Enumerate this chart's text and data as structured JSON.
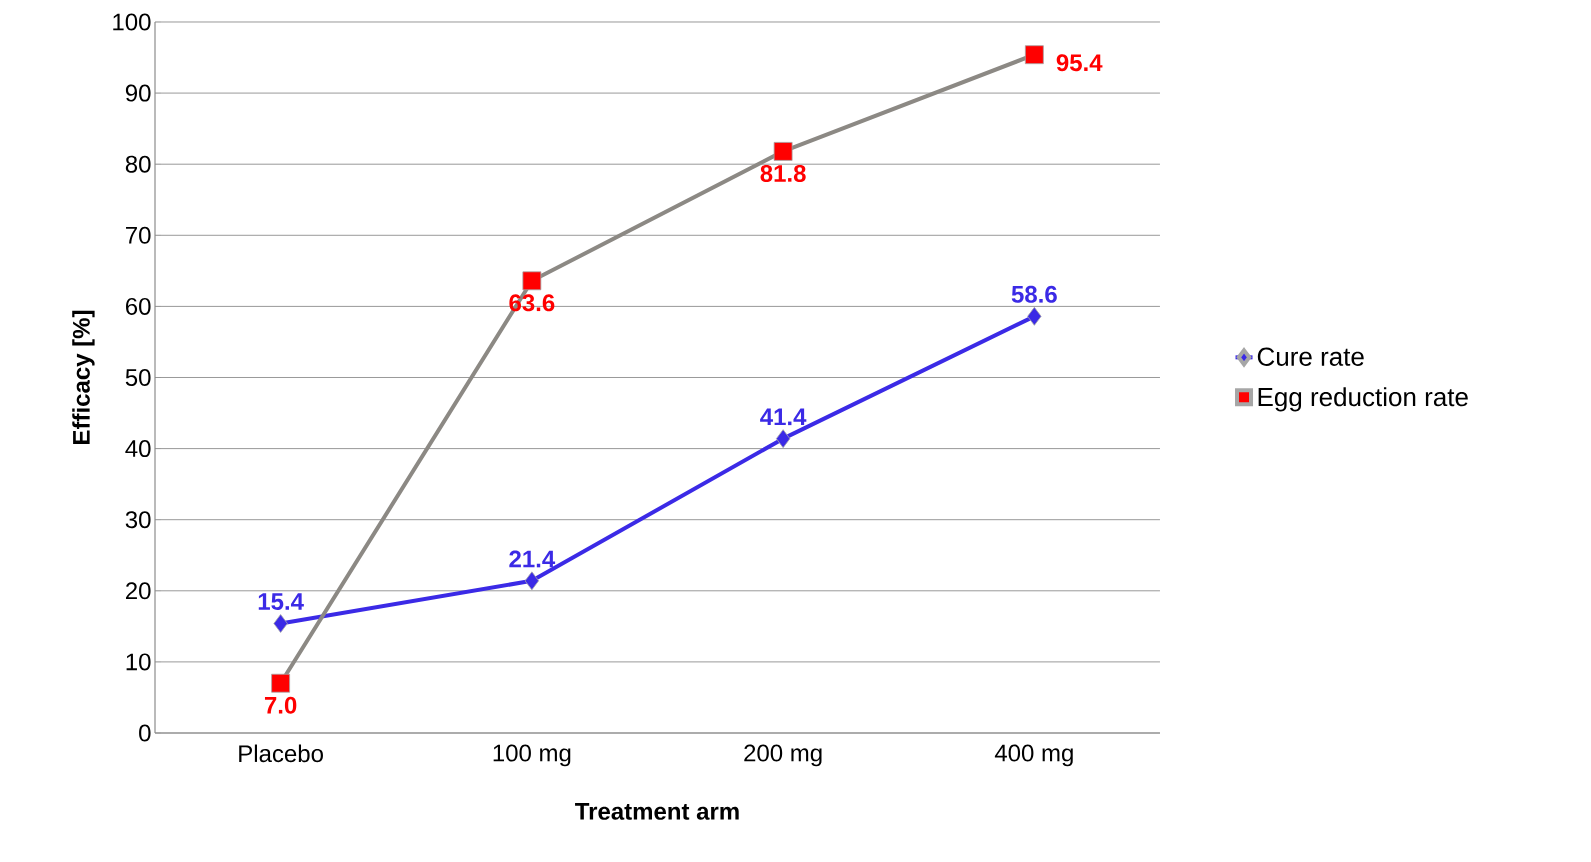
{
  "chart_data": {
    "type": "line",
    "xlabel": "Treatment arm",
    "ylabel": "Efficacy [%]",
    "categories": [
      "Placebo",
      "100 mg",
      "200 mg",
      "400 mg"
    ],
    "series": [
      {
        "name": "Cure rate",
        "color": "#3b2ae6",
        "marker": "diamond",
        "values": [
          15.4,
          21.4,
          41.4,
          58.6
        ],
        "value_labels": [
          "15.4",
          "21.4",
          "41.4",
          "58.6"
        ]
      },
      {
        "name": "Egg reduction rate",
        "color": "#8c8984",
        "marker": "square",
        "colors": [
          "#ff0000",
          "#ff0000",
          "#ff0000",
          "#ff0000"
        ],
        "values": [
          7.0,
          63.6,
          81.8,
          95.4
        ],
        "value_labels": [
          "7.0",
          "63.6",
          "81.8",
          "95.4"
        ]
      }
    ],
    "ylim": [
      0,
      100
    ],
    "yticks": [
      0,
      10,
      20,
      30,
      40,
      50,
      60,
      70,
      80,
      90,
      100
    ],
    "grid": "y",
    "legend": "right"
  }
}
